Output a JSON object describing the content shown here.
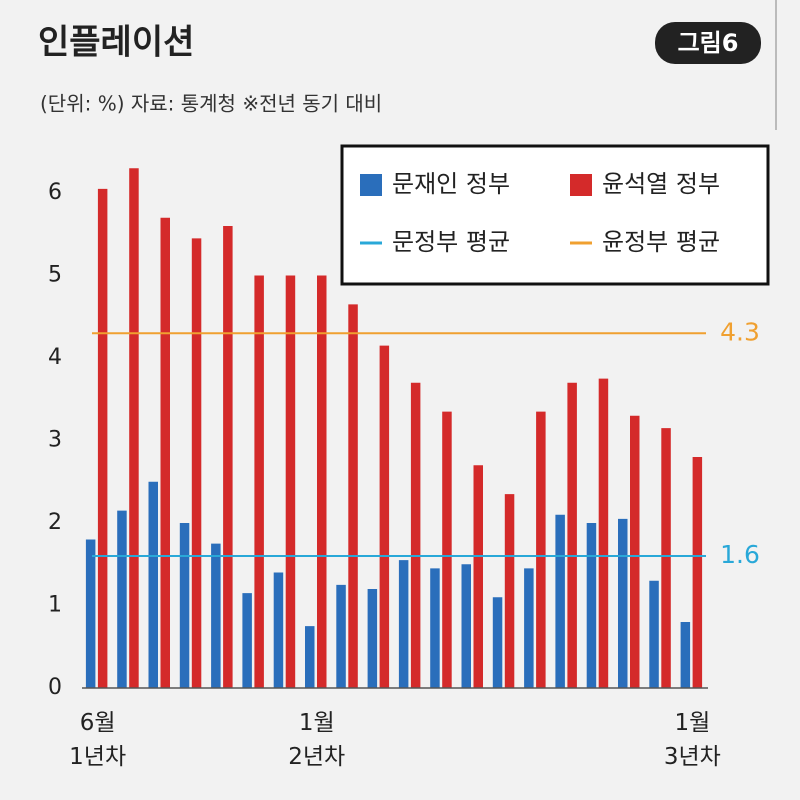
{
  "chart_data": {
    "type": "bar",
    "title": "인플레이션",
    "badge": "그림6",
    "subtitle": "(단위: %) 자료: 통계청 ※전년 동기 대비",
    "categories": [
      "6월\n1년차",
      null,
      null,
      null,
      null,
      null,
      null,
      "1월\n2년차",
      null,
      null,
      null,
      null,
      null,
      null,
      null,
      null,
      null,
      null,
      null,
      "1월\n3년차"
    ],
    "series": [
      {
        "name": "문재인 정부",
        "color": "#2a6ebb",
        "values": [
          1.8,
          2.15,
          2.5,
          2.0,
          1.75,
          1.15,
          1.4,
          0.75,
          1.25,
          1.2,
          1.55,
          1.45,
          1.5,
          1.1,
          1.45,
          2.1,
          2.0,
          2.05,
          1.3,
          0.8
        ]
      },
      {
        "name": "윤석열 정부",
        "color": "#d42a2a",
        "values": [
          6.05,
          6.3,
          5.7,
          5.45,
          5.6,
          5.0,
          5.0,
          5.0,
          4.65,
          4.15,
          3.7,
          3.35,
          2.7,
          2.35,
          3.35,
          3.7,
          3.75,
          3.3,
          3.15,
          2.8
        ]
      }
    ],
    "reference_lines": [
      {
        "name": "문정부 평균",
        "value": 1.6,
        "color": "#29a8d8"
      },
      {
        "name": "윤정부 평균",
        "value": 4.3,
        "color": "#f0a030"
      }
    ],
    "ylim": [
      0,
      6.6
    ],
    "yticks": [
      0,
      1,
      2,
      3,
      4,
      5,
      6
    ],
    "grid": false
  }
}
